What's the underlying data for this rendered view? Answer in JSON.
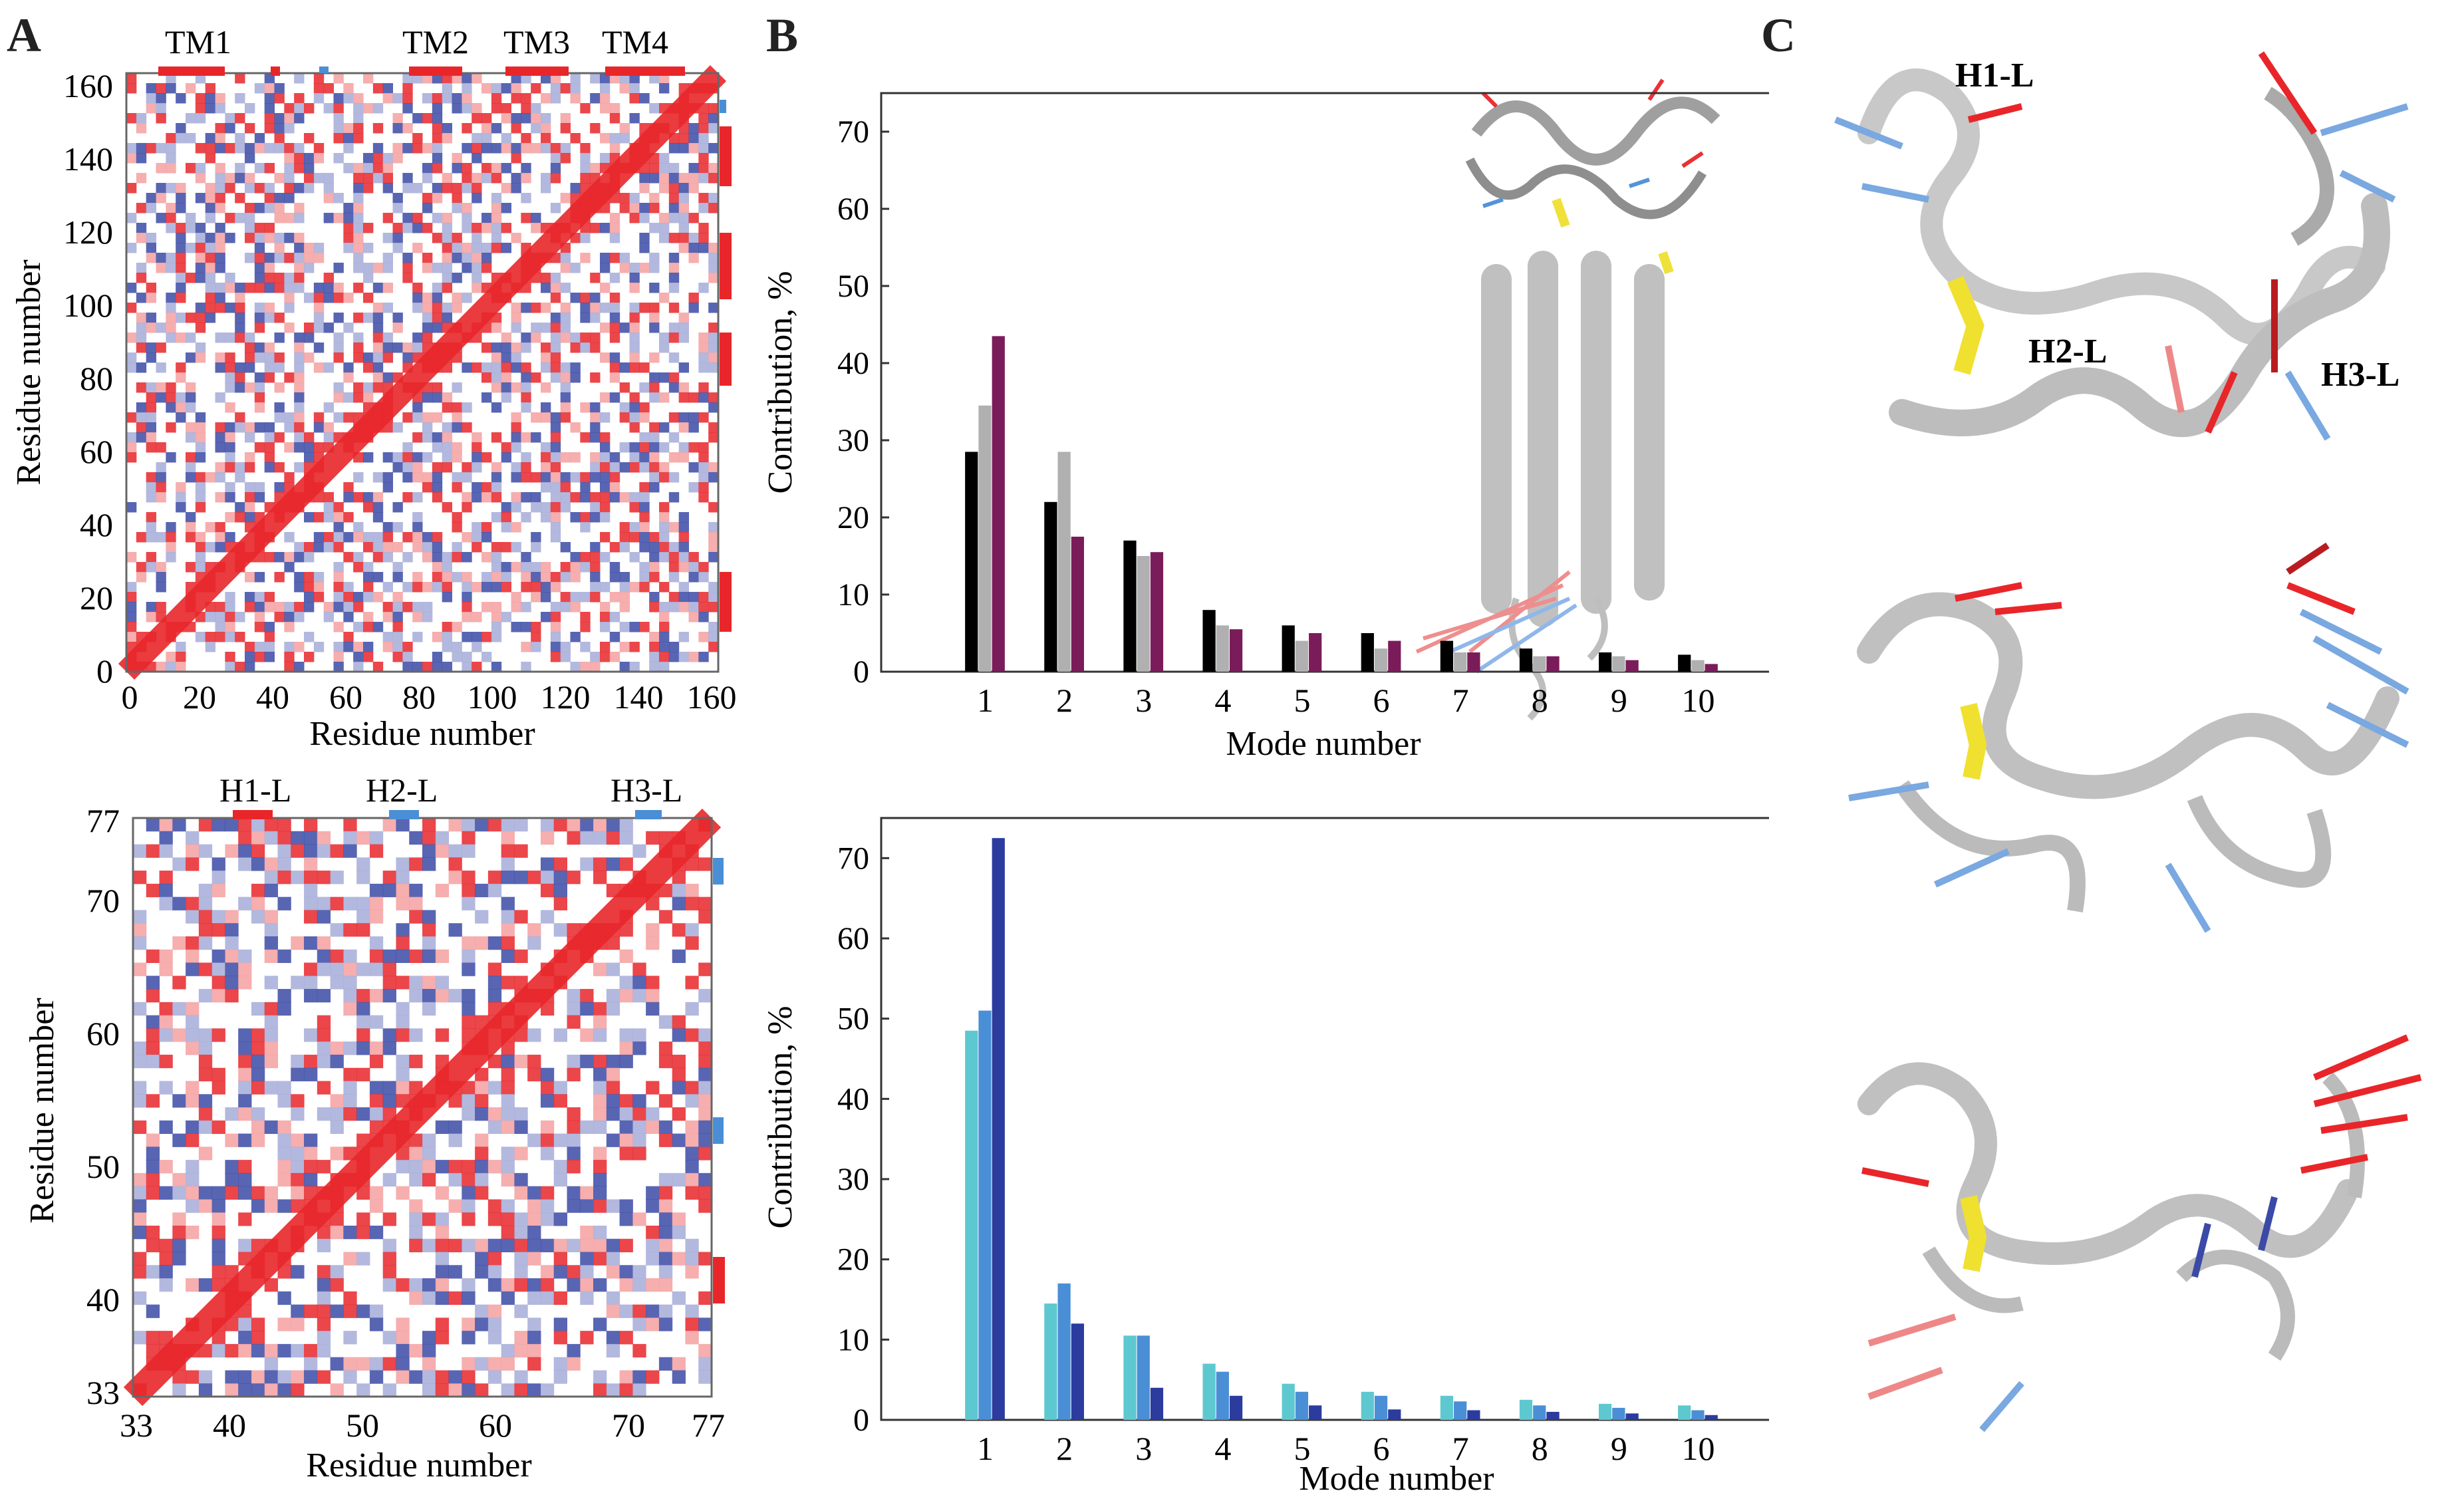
{
  "figure": {
    "panel_labels": {
      "a": "A",
      "b": "B",
      "c": "C"
    },
    "colors": {
      "red": "#e8262a",
      "light_red": "#f4a0a0",
      "blue": "#3b4aa6",
      "light_blue": "#a6abd8",
      "black": "#000000",
      "gray": "#b0b0b0",
      "purple": "#7b1c5a",
      "cyan": "#5ec8d0",
      "mid_blue": "#4a8fd6",
      "navy": "#2b3c9e",
      "ribbon": "#c8c8c8",
      "yellow": "#f0e030"
    }
  },
  "map_top": {
    "segments": [
      "TM1",
      "TM2",
      "TM3",
      "TM4"
    ],
    "x_ticks": [
      "0",
      "20",
      "40",
      "60",
      "80",
      "100",
      "120",
      "140",
      "160"
    ],
    "y_ticks": [
      "0",
      "20",
      "40",
      "60",
      "80",
      "100",
      "120",
      "140",
      "160"
    ],
    "xlabel": "Residue number",
    "ylabel": "Residue number"
  },
  "map_bottom": {
    "segments": [
      "H1-L",
      "H2-L",
      "H3-L"
    ],
    "x_ticks": [
      "33",
      "40",
      "50",
      "60",
      "70",
      "77"
    ],
    "y_ticks": [
      "33",
      "40",
      "50",
      "60",
      "70",
      "77"
    ],
    "xlabel": "Residue number",
    "ylabel": "Residue number"
  },
  "structure_labels": {
    "h1": "H1-L",
    "h2": "H2-L",
    "h3": "H3-L"
  },
  "chart_data": [
    {
      "type": "bar",
      "categories": [
        "1",
        "2",
        "3",
        "4",
        "5",
        "6",
        "7",
        "8",
        "9",
        "10"
      ],
      "series": [
        {
          "name": "series-1",
          "color": "#000000",
          "values": [
            28.5,
            22,
            17,
            8,
            6,
            5,
            4,
            3,
            2.5,
            2.2
          ]
        },
        {
          "name": "series-2",
          "color": "#b0b0b0",
          "values": [
            34.5,
            28.5,
            15,
            6,
            4,
            3,
            2.5,
            2,
            2,
            1.5
          ]
        },
        {
          "name": "series-3",
          "color": "#7b1c5a",
          "values": [
            43.5,
            17.5,
            15.5,
            5.5,
            5,
            4,
            2.5,
            2,
            1.5,
            1
          ]
        }
      ],
      "title": "",
      "xlabel": "Mode number",
      "ylabel": "Contribution, %",
      "ylim": [
        0,
        75
      ],
      "yticks": [
        "0",
        "10",
        "20",
        "30",
        "40",
        "50",
        "60",
        "70"
      ]
    },
    {
      "type": "bar",
      "categories": [
        "1",
        "2",
        "3",
        "4",
        "5",
        "6",
        "7",
        "8",
        "9",
        "10"
      ],
      "series": [
        {
          "name": "series-1",
          "color": "#5ec8d0",
          "values": [
            48.5,
            14.5,
            10.5,
            7,
            4.5,
            3.5,
            3,
            2.5,
            2,
            1.8
          ]
        },
        {
          "name": "series-2",
          "color": "#4a8fd6",
          "values": [
            51,
            17,
            10.5,
            6,
            3.5,
            3,
            2.3,
            1.8,
            1.5,
            1.2
          ]
        },
        {
          "name": "series-3",
          "color": "#2b3c9e",
          "values": [
            72.5,
            12,
            4,
            3,
            1.8,
            1.3,
            1.2,
            1,
            0.8,
            0.6
          ]
        }
      ],
      "title": "",
      "xlabel": "Mode number",
      "ylabel": "Contribution, %",
      "ylim": [
        0,
        75
      ],
      "yticks": [
        "0",
        "10",
        "20",
        "30",
        "40",
        "50",
        "60",
        "70"
      ]
    }
  ]
}
